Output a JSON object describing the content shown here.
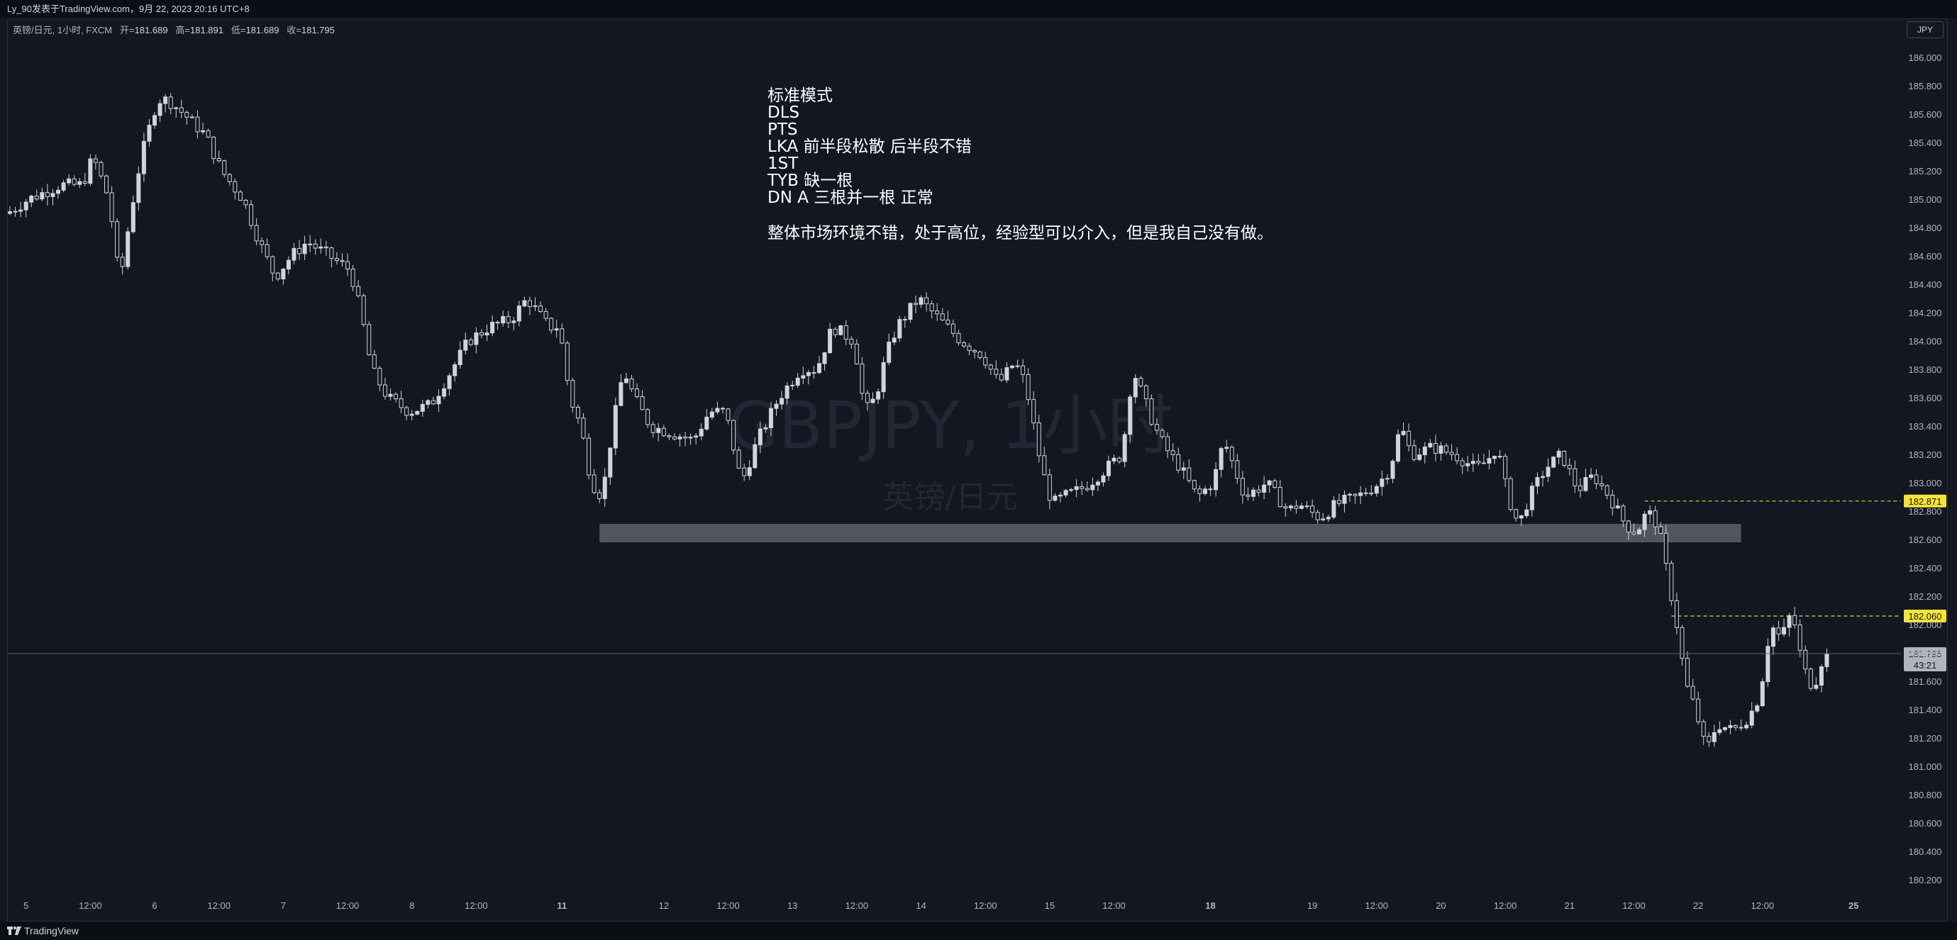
{
  "header": {
    "publisher": "Ly_90发表于TradingView.com，9月 22, 2023 20:16 UTC+8"
  },
  "symbol_info": {
    "name": "英镑/日元, 1小时, FXCM",
    "open_label": "开=",
    "open": "181.689",
    "high_label": "高=",
    "high": "181.891",
    "low_label": "低=",
    "low": "181.689",
    "close_label": "收=",
    "close": "181.795"
  },
  "currency": "JPY",
  "watermark": {
    "symbol": "GBPJPY, 1小时",
    "name": "英镑/日元"
  },
  "notes": {
    "lines": [
      "标准模式",
      "DLS",
      "PTS",
      "LKA 前半段松散 后半段不错",
      "1ST",
      "TYB 缺一根",
      "DN A 三根并一根 正常"
    ],
    "summary": "整体市场环境不错，处于高位，经验型可以介入，但是我自己没有做。"
  },
  "footer": {
    "brand": "TradingView",
    "logo_icon": "tradingview-logo-icon"
  },
  "colors": {
    "background": "#131722",
    "candle": "#d1d4dc",
    "level_line": "#f0d33a",
    "level_label_bg": "#f5e33b",
    "zone": "#5d606b",
    "last_price_bg": "#b2b5be"
  },
  "chart_data": {
    "type": "candlestick",
    "title": "",
    "xlabel": "",
    "ylabel": "",
    "ylim": [
      180.1,
      186.15
    ],
    "y_ticks": [
      "180.200",
      "180.400",
      "180.600",
      "180.800",
      "181.000",
      "181.200",
      "181.400",
      "181.600",
      "181.800",
      "182.000",
      "182.200",
      "182.400",
      "182.600",
      "182.800",
      "183.000",
      "183.200",
      "183.400",
      "183.600",
      "183.800",
      "184.000",
      "184.200",
      "184.400",
      "184.600",
      "184.800",
      "185.000",
      "185.200",
      "185.400",
      "185.600",
      "185.800",
      "186.000"
    ],
    "x_ticks": [
      {
        "label": "5",
        "bar": 3
      },
      {
        "label": "12:00",
        "bar": 15
      },
      {
        "label": "6",
        "bar": 27
      },
      {
        "label": "12:00",
        "bar": 39
      },
      {
        "label": "7",
        "bar": 51
      },
      {
        "label": "12:00",
        "bar": 63
      },
      {
        "label": "8",
        "bar": 75
      },
      {
        "label": "12:00",
        "bar": 87
      },
      {
        "label": "11",
        "bar": 103
      },
      {
        "label": "12",
        "bar": 122
      },
      {
        "label": "12:00",
        "bar": 134
      },
      {
        "label": "13",
        "bar": 146
      },
      {
        "label": "12:00",
        "bar": 158
      },
      {
        "label": "14",
        "bar": 170
      },
      {
        "label": "12:00",
        "bar": 182
      },
      {
        "label": "15",
        "bar": 194
      },
      {
        "label": "12:00",
        "bar": 206
      },
      {
        "label": "18",
        "bar": 224
      },
      {
        "label": "19",
        "bar": 243
      },
      {
        "label": "12:00",
        "bar": 255
      },
      {
        "label": "20",
        "bar": 267
      },
      {
        "label": "12:00",
        "bar": 279
      },
      {
        "label": "21",
        "bar": 291
      },
      {
        "label": "12:00",
        "bar": 303
      },
      {
        "label": "22",
        "bar": 315
      },
      {
        "label": "12:00",
        "bar": 327
      },
      {
        "label": "25",
        "bar": 344
      }
    ],
    "bold_x_ticks": [
      "11",
      "18",
      "25"
    ],
    "gaps_after_bar": [
      104,
      225
    ],
    "path_points": [
      [
        0,
        184.9
      ],
      [
        4,
        185.0
      ],
      [
        10,
        185.1
      ],
      [
        14,
        185.1
      ],
      [
        16,
        185.3
      ],
      [
        19,
        185.0
      ],
      [
        20,
        184.7
      ],
      [
        21,
        184.4
      ],
      [
        23,
        184.9
      ],
      [
        25,
        185.3
      ],
      [
        28,
        185.7
      ],
      [
        30,
        185.7
      ],
      [
        33,
        185.6
      ],
      [
        37,
        185.45
      ],
      [
        40,
        185.2
      ],
      [
        44,
        185.0
      ],
      [
        47,
        184.7
      ],
      [
        50,
        184.45
      ],
      [
        53,
        184.6
      ],
      [
        56,
        184.7
      ],
      [
        60,
        184.6
      ],
      [
        64,
        184.5
      ],
      [
        66,
        184.2
      ],
      [
        68,
        183.8
      ],
      [
        71,
        183.6
      ],
      [
        75,
        183.5
      ],
      [
        79,
        183.55
      ],
      [
        83,
        183.8
      ],
      [
        86,
        184.0
      ],
      [
        90,
        184.1
      ],
      [
        94,
        184.15
      ],
      [
        97,
        184.3
      ],
      [
        101,
        184.1
      ],
      [
        103,
        184.1
      ],
      [
        105,
        183.6
      ],
      [
        107,
        183.4
      ],
      [
        109,
        183.0
      ],
      [
        111,
        182.9
      ],
      [
        113,
        183.4
      ],
      [
        115,
        183.8
      ],
      [
        117,
        183.6
      ],
      [
        120,
        183.4
      ],
      [
        124,
        183.35
      ],
      [
        128,
        183.3
      ],
      [
        131,
        183.5
      ],
      [
        134,
        183.5
      ],
      [
        137,
        183.0
      ],
      [
        140,
        183.3
      ],
      [
        144,
        183.6
      ],
      [
        148,
        183.8
      ],
      [
        151,
        183.8
      ],
      [
        154,
        184.1
      ],
      [
        158,
        184.0
      ],
      [
        160,
        183.5
      ],
      [
        162,
        183.6
      ],
      [
        164,
        183.9
      ],
      [
        166,
        184.1
      ],
      [
        168,
        184.2
      ],
      [
        170,
        184.3
      ],
      [
        174,
        184.15
      ],
      [
        178,
        184.0
      ],
      [
        182,
        183.9
      ],
      [
        185,
        183.7
      ],
      [
        188,
        183.85
      ],
      [
        190,
        183.7
      ],
      [
        193,
        183.1
      ],
      [
        195,
        182.85
      ],
      [
        197,
        182.9
      ],
      [
        200,
        182.95
      ],
      [
        202,
        183.0
      ],
      [
        205,
        183.1
      ],
      [
        208,
        183.2
      ],
      [
        210,
        183.8
      ],
      [
        212,
        183.6
      ],
      [
        214,
        183.4
      ],
      [
        216,
        183.25
      ],
      [
        219,
        183.1
      ],
      [
        222,
        182.9
      ],
      [
        225,
        183.0
      ],
      [
        227,
        183.3
      ],
      [
        229,
        183.1
      ],
      [
        231,
        182.9
      ],
      [
        233,
        182.95
      ],
      [
        235,
        183.0
      ],
      [
        237,
        182.9
      ],
      [
        239,
        182.8
      ],
      [
        241,
        182.85
      ],
      [
        243,
        182.8
      ],
      [
        245,
        182.75
      ],
      [
        248,
        182.85
      ],
      [
        252,
        182.9
      ],
      [
        256,
        183.0
      ],
      [
        258,
        183.1
      ],
      [
        260,
        183.4
      ],
      [
        262,
        183.2
      ],
      [
        266,
        183.25
      ],
      [
        270,
        183.2
      ],
      [
        274,
        183.1
      ],
      [
        276,
        183.15
      ],
      [
        278,
        183.25
      ],
      [
        280,
        182.9
      ],
      [
        282,
        182.7
      ],
      [
        284,
        182.9
      ],
      [
        287,
        183.1
      ],
      [
        290,
        183.2
      ],
      [
        293,
        182.95
      ],
      [
        296,
        183.05
      ],
      [
        299,
        182.9
      ],
      [
        302,
        182.7
      ],
      [
        304,
        182.65
      ],
      [
        306,
        182.8
      ],
      [
        308,
        182.7
      ],
      [
        310,
        182.3
      ],
      [
        312,
        181.9
      ],
      [
        313,
        181.6
      ],
      [
        315,
        181.4
      ],
      [
        317,
        181.1
      ],
      [
        319,
        181.3
      ],
      [
        322,
        181.25
      ],
      [
        325,
        181.35
      ],
      [
        327,
        181.5
      ],
      [
        329,
        182.0
      ],
      [
        331,
        181.9
      ],
      [
        333,
        182.1
      ],
      [
        335,
        181.7
      ],
      [
        337,
        181.55
      ],
      [
        339,
        181.8
      ]
    ],
    "ohlc_generation": "approximate hourly candles traced from the plotted price path",
    "horizontal_levels": [
      {
        "price": 182.871,
        "label": "182.871",
        "from_bar": 305
      },
      {
        "price": 182.06,
        "label": "182.060",
        "from_bar": 310
      }
    ],
    "support_zone": {
      "from_price": 182.58,
      "to_price": 182.71,
      "from_bar": 110,
      "to_bar": 323
    },
    "last_price": {
      "price": 181.795,
      "label": "181.795",
      "countdown": "43:21"
    }
  }
}
